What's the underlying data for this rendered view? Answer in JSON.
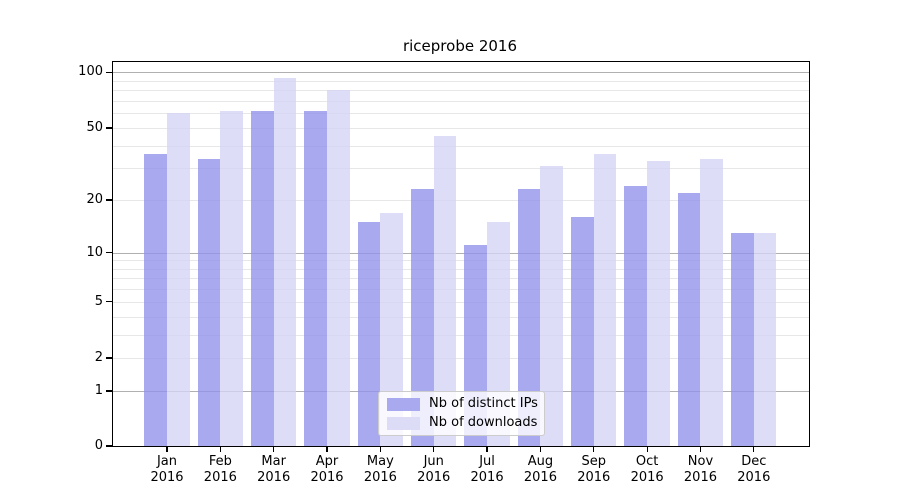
{
  "chart_data": {
    "type": "bar",
    "title": "riceprobe 2016",
    "categories": [
      "Jan 2016",
      "Feb 2016",
      "Mar 2016",
      "Apr 2016",
      "May 2016",
      "Jun 2016",
      "Jul 2016",
      "Aug 2016",
      "Sep 2016",
      "Oct 2016",
      "Nov 2016",
      "Dec 2016"
    ],
    "series": [
      {
        "name": "Nb of distinct IPs",
        "color": "#a9a9f0",
        "fill": "rgba(145,145,236,0.78)",
        "values": [
          36,
          34,
          62,
          62,
          15,
          23,
          11,
          23,
          16,
          24,
          22,
          13
        ]
      },
      {
        "name": "Nb of downloads",
        "color": "#dcdcf7",
        "fill": "rgba(211,211,245,0.78)",
        "values": [
          60,
          62,
          93,
          80,
          17,
          45,
          15,
          31,
          36,
          33,
          34,
          13
        ]
      }
    ],
    "xlabel": "",
    "ylabel": "",
    "yscale": "log1p",
    "ylim": [
      0,
      115
    ],
    "grid": true,
    "legend_position": "lower center",
    "gridlines": {
      "major": [
        1,
        10,
        100
      ],
      "minor": [
        2,
        3,
        4,
        5,
        6,
        7,
        8,
        9,
        20,
        30,
        40,
        50,
        60,
        70,
        80,
        90
      ]
    }
  },
  "y_axis": {
    "tick_values": [
      100,
      50,
      20,
      10,
      5,
      2,
      1,
      0
    ],
    "tick_labels": [
      "100",
      "50",
      "20",
      "10",
      "5",
      "2",
      "1",
      "0"
    ]
  },
  "x_axis": {
    "tick_labels": [
      "Jan 2016",
      "Feb 2016",
      "Mar 2016",
      "Apr 2016",
      "May 2016",
      "Jun 2016",
      "Jul 2016",
      "Aug 2016",
      "Sep 2016",
      "Oct 2016",
      "Nov 2016",
      "Dec 2016"
    ]
  },
  "legend": {
    "entries": [
      {
        "label": "Nb of distinct IPs"
      },
      {
        "label": "Nb of downloads"
      }
    ]
  },
  "colors": {
    "background": "#ffffff",
    "axis": "#000000",
    "grid_major": "#b0b0b0",
    "grid_minor": "#e7e7e7",
    "legend_border": "#cccccc",
    "legend_background": "rgba(255,255,255,0.8)",
    "ips_bar": "#a9a9f0",
    "downloads_bar": "#dcdcf7"
  }
}
